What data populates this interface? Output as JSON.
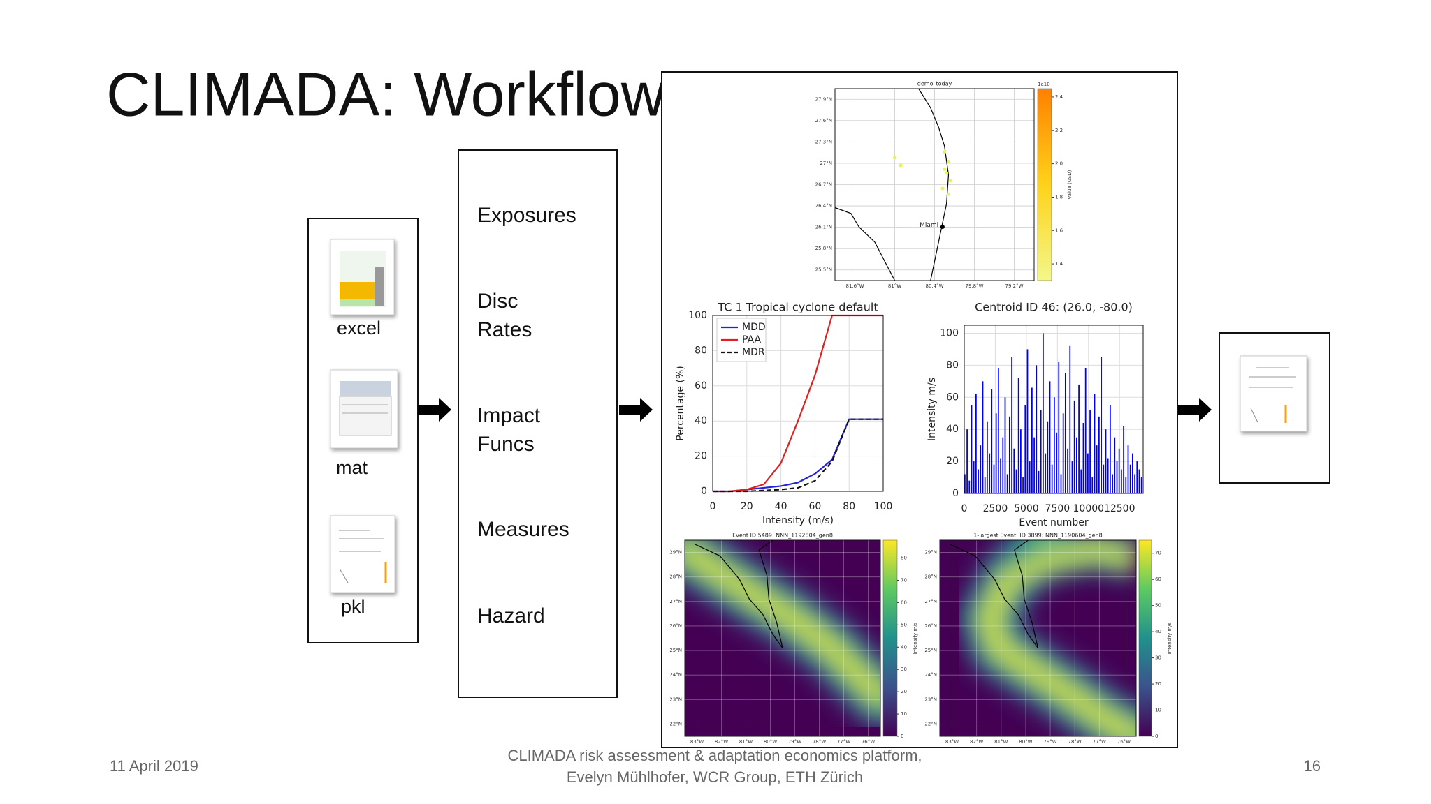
{
  "slide": {
    "title": "CLIMADA: Workflow",
    "date": "11 April 2019",
    "footer": [
      "CLIMADA risk assessment & adaptation economics platform,",
      "Evelyn Mühlhofer, WCR Group, ETH Zürich"
    ],
    "page_number": "16"
  },
  "inputs": [
    "excel",
    "mat",
    "pkl"
  ],
  "modules": [
    [
      "Exposures"
    ],
    [
      "Disc",
      "Rates"
    ],
    [
      "Impact",
      "Funcs"
    ],
    [
      "Measures"
    ],
    [
      "Hazard"
    ]
  ],
  "chart_data": [
    {
      "type": "line",
      "title": "TC 1 Tropical cyclone default",
      "xlabel": "Intensity (m/s)",
      "ylabel": "Percentage (%)",
      "x": [
        0,
        10,
        20,
        30,
        40,
        50,
        60,
        70,
        80,
        90,
        100
      ],
      "series": [
        {
          "name": "MDD",
          "color": "#2222dd",
          "linestyle": "solid",
          "values": [
            0,
            0,
            1,
            2,
            3,
            5,
            10,
            18,
            41,
            41,
            41
          ]
        },
        {
          "name": "PAA",
          "color": "#e02020",
          "linestyle": "solid",
          "values": [
            0,
            0,
            1,
            4,
            16,
            40,
            66,
            100,
            100,
            100,
            100
          ]
        },
        {
          "name": "MDR",
          "color": "#111111",
          "linestyle": "dashed",
          "values": [
            0,
            0,
            0,
            0.5,
            1,
            2,
            6,
            17,
            41,
            41,
            41
          ]
        }
      ],
      "xlim": [
        0,
        100
      ],
      "ylim": [
        0,
        100
      ],
      "xticks": [
        0,
        20,
        40,
        60,
        80,
        100
      ],
      "yticks": [
        0,
        20,
        40,
        60,
        80,
        100
      ],
      "grid": true,
      "legend": "upper left"
    },
    {
      "type": "bar",
      "title": "Centroid ID 46: (26.0, -80.0)",
      "xlabel": "Event number",
      "ylabel": "Intensity m/s",
      "color": "#0000ee",
      "x": [
        0,
        180,
        360,
        540,
        720,
        900,
        1080,
        1260,
        1440,
        1620,
        1800,
        1980,
        2160,
        2340,
        2520,
        2700,
        2880,
        3060,
        3240,
        3420,
        3600,
        3780,
        3960,
        4140,
        4320,
        4500,
        4680,
        4860,
        5040,
        5220,
        5400,
        5580,
        5760,
        5940,
        6120,
        6300,
        6480,
        6660,
        6840,
        7020,
        7200,
        7380,
        7560,
        7740,
        7920,
        8100,
        8280,
        8460,
        8640,
        8820,
        9000,
        9180,
        9360,
        9540,
        9720,
        9900,
        10080,
        10260,
        10440,
        10620,
        10800,
        10980,
        11160,
        11340,
        11520,
        11700,
        11880,
        12060,
        12240,
        12420,
        12600,
        12780,
        12960,
        13140,
        13320,
        13500,
        13680,
        13860,
        14040,
        14220
      ],
      "values": [
        12,
        40,
        8,
        55,
        20,
        62,
        15,
        30,
        70,
        10,
        45,
        25,
        65,
        18,
        50,
        78,
        22,
        35,
        60,
        12,
        48,
        85,
        28,
        15,
        72,
        40,
        10,
        55,
        90,
        20,
        66,
        35,
        80,
        14,
        52,
        100,
        25,
        45,
        70,
        18,
        60,
        38,
        82,
        12,
        50,
        75,
        28,
        92,
        20,
        58,
        35,
        68,
        15,
        44,
        78,
        25,
        52,
        10,
        62,
        30,
        48,
        85,
        18,
        40,
        22,
        55,
        12,
        35,
        20,
        28,
        15,
        42,
        10,
        30,
        18,
        25,
        12,
        20,
        15,
        10
      ],
      "xlim": [
        0,
        14400
      ],
      "ylim": [
        0,
        105
      ],
      "xticks": [
        0,
        2500,
        5000,
        7500,
        10000,
        12500
      ],
      "yticks": [
        0,
        20,
        40,
        60,
        80,
        100
      ],
      "grid": true
    }
  ],
  "maps": [
    {
      "title": "demo_today",
      "yticks": [
        "25.5°N",
        "25.8°N",
        "26.1°N",
        "26.4°N",
        "26.7°N",
        "27°N",
        "27.3°N",
        "27.6°N",
        "27.9°N"
      ],
      "xticks": [
        "81.6°W",
        "81°W",
        "80.4°W",
        "79.8°W",
        "79.2°W"
      ],
      "place_label": "Miami",
      "colorbar": {
        "label": "Value (USD)",
        "exponent": "1e10",
        "lim": [
          1.3,
          2.45
        ],
        "ticks": [
          1.4,
          1.6,
          1.8,
          {
            "value": 2,
            "label": "2.0"
          },
          2.2,
          2.4
        ]
      }
    },
    {
      "title": "Event ID 5489: NNN_1192804_gen8",
      "yticks": [
        "22°N",
        "23°N",
        "24°N",
        "25°N",
        "26°N",
        "27°N",
        "28°N",
        "29°N"
      ],
      "xticks": [
        "83°W",
        "82°W",
        "81°W",
        "80°W",
        "79°W",
        "78°W",
        "77°W",
        "76°W"
      ],
      "colorbar": {
        "label": "Intensity m/s",
        "lim": [
          0,
          88
        ],
        "ticks": [
          0,
          10,
          20,
          30,
          40,
          50,
          60,
          70,
          80
        ]
      }
    },
    {
      "title": "1-largest Event. ID 3899: NNN_1190604_gen8",
      "yticks": [
        "22°N",
        "23°N",
        "24°N",
        "25°N",
        "26°N",
        "27°N",
        "28°N",
        "29°N"
      ],
      "xticks": [
        "83°W",
        "82°W",
        "81°W",
        "80°W",
        "79°W",
        "78°W",
        "77°W",
        "76°W"
      ],
      "colorbar": {
        "label": "Intensity m/s",
        "lim": [
          0,
          75
        ],
        "ticks": [
          0,
          10,
          20,
          30,
          40,
          50,
          60,
          70
        ]
      }
    }
  ]
}
